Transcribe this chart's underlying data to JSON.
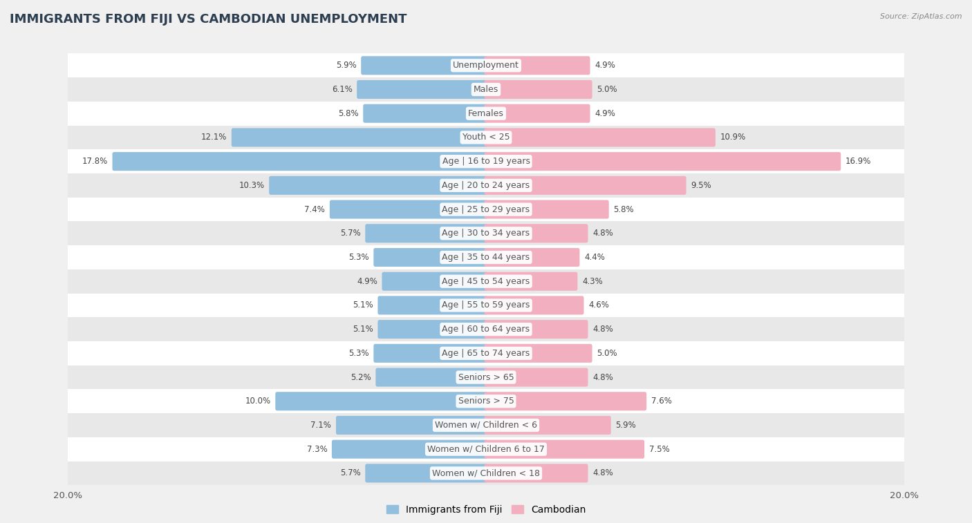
{
  "title": "IMMIGRANTS FROM FIJI VS CAMBODIAN UNEMPLOYMENT",
  "source": "Source: ZipAtlas.com",
  "categories": [
    "Unemployment",
    "Males",
    "Females",
    "Youth < 25",
    "Age | 16 to 19 years",
    "Age | 20 to 24 years",
    "Age | 25 to 29 years",
    "Age | 30 to 34 years",
    "Age | 35 to 44 years",
    "Age | 45 to 54 years",
    "Age | 55 to 59 years",
    "Age | 60 to 64 years",
    "Age | 65 to 74 years",
    "Seniors > 65",
    "Seniors > 75",
    "Women w/ Children < 6",
    "Women w/ Children 6 to 17",
    "Women w/ Children < 18"
  ],
  "fiji_values": [
    5.9,
    6.1,
    5.8,
    12.1,
    17.8,
    10.3,
    7.4,
    5.7,
    5.3,
    4.9,
    5.1,
    5.1,
    5.3,
    5.2,
    10.0,
    7.1,
    7.3,
    5.7
  ],
  "cambodian_values": [
    4.9,
    5.0,
    4.9,
    10.9,
    16.9,
    9.5,
    5.8,
    4.8,
    4.4,
    4.3,
    4.6,
    4.8,
    5.0,
    4.8,
    7.6,
    5.9,
    7.5,
    4.8
  ],
  "fiji_color": "#92bfde",
  "cambodian_color": "#f2afc0",
  "fiji_label": "Immigrants from Fiji",
  "cambodian_label": "Cambodian",
  "xlim": 20.0,
  "x_tick_label": "20.0%",
  "background_color": "#f0f0f0",
  "row_bg_white": "#ffffff",
  "row_bg_gray": "#e8e8e8",
  "label_color": "#555555",
  "value_color": "#444444",
  "title_fontsize": 13,
  "label_fontsize": 9,
  "value_fontsize": 8.5
}
